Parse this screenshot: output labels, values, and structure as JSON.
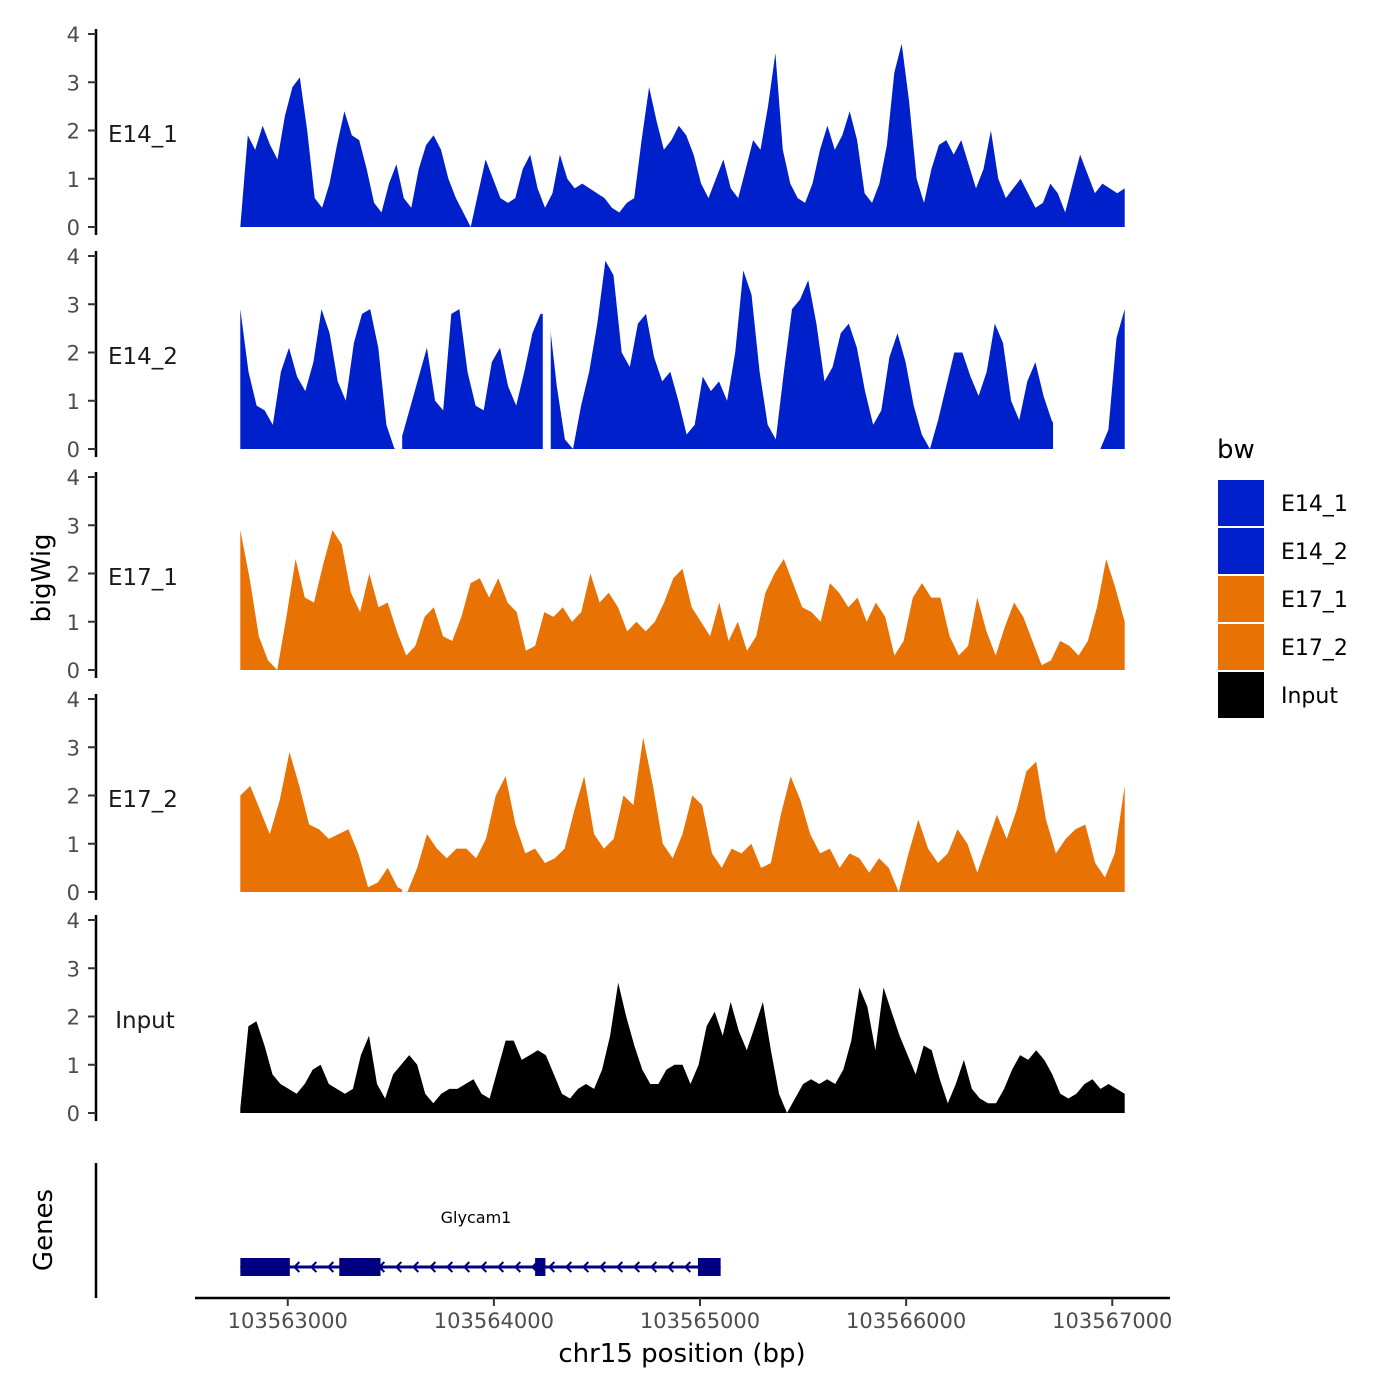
{
  "chart_data": {
    "type": "area",
    "ylabel": "bigWig",
    "xlabel": "chr15 position (bp)",
    "ylim": [
      0,
      4
    ],
    "y_ticks": [
      "0",
      "1",
      "2",
      "3",
      "4"
    ],
    "xlim": [
      103562550,
      103567280
    ],
    "x_ticks": [
      {
        "value": 103563000,
        "label": "103563000"
      },
      {
        "value": 103564000,
        "label": "103564000"
      },
      {
        "value": 103565000,
        "label": "103565000"
      },
      {
        "value": 103566000,
        "label": "103566000"
      },
      {
        "value": 103567000,
        "label": "103567000"
      }
    ],
    "x_start": 103562770,
    "x_end": 103567060,
    "series": [
      {
        "name": "E14_1",
        "color": "#0020CC",
        "values": [
          0.0,
          1.9,
          1.6,
          2.1,
          1.7,
          1.4,
          2.3,
          2.9,
          3.1,
          2.0,
          0.6,
          0.4,
          0.9,
          1.7,
          2.4,
          1.9,
          1.8,
          1.2,
          0.5,
          0.3,
          0.9,
          1.3,
          0.6,
          0.4,
          1.2,
          1.7,
          1.9,
          1.6,
          1.0,
          0.6,
          0.3,
          0.0,
          0.7,
          1.4,
          1.0,
          0.6,
          0.5,
          0.6,
          1.2,
          1.5,
          0.8,
          0.4,
          0.7,
          1.5,
          1.0,
          0.8,
          0.9,
          0.8,
          0.7,
          0.6,
          0.4,
          0.3,
          0.5,
          0.6,
          1.8,
          2.9,
          2.2,
          1.6,
          1.8,
          2.1,
          1.9,
          1.5,
          0.9,
          0.6,
          1.0,
          1.4,
          0.8,
          0.6,
          1.2,
          1.8,
          1.6,
          2.5,
          3.6,
          1.6,
          0.9,
          0.6,
          0.5,
          0.9,
          1.6,
          2.1,
          1.6,
          1.9,
          2.4,
          1.8,
          0.7,
          0.5,
          0.9,
          1.7,
          3.2,
          3.8,
          2.6,
          1.0,
          0.5,
          1.2,
          1.7,
          1.8,
          1.5,
          1.8,
          1.3,
          0.8,
          1.2,
          2.0,
          1.0,
          0.6,
          0.8,
          1.0,
          0.7,
          0.4,
          0.5,
          0.9,
          0.7,
          0.3,
          0.9,
          1.5,
          1.1,
          0.7,
          0.9,
          0.8,
          0.7,
          0.8
        ],
        "gaps": []
      },
      {
        "name": "E14_2",
        "color": "#0020CC",
        "values": [
          2.9,
          1.6,
          0.9,
          0.8,
          0.5,
          1.6,
          2.1,
          1.5,
          1.2,
          1.8,
          2.9,
          2.4,
          1.4,
          1.0,
          2.2,
          2.8,
          2.9,
          2.1,
          0.5,
          0.0,
          0.3,
          0.9,
          1.5,
          2.1,
          1.0,
          0.8,
          2.8,
          2.9,
          1.6,
          0.9,
          0.8,
          1.8,
          2.1,
          1.3,
          0.9,
          1.6,
          2.4,
          2.8,
          2.8,
          1.3,
          0.2,
          0.0,
          0.9,
          1.6,
          2.6,
          3.9,
          3.6,
          2.0,
          1.7,
          2.6,
          2.8,
          1.9,
          1.4,
          1.6,
          1.0,
          0.3,
          0.5,
          1.5,
          1.2,
          1.4,
          1.0,
          2.0,
          3.7,
          3.2,
          1.6,
          0.5,
          0.2,
          1.6,
          2.9,
          3.1,
          3.5,
          2.6,
          1.4,
          1.7,
          2.4,
          2.6,
          2.1,
          1.2,
          0.5,
          0.8,
          1.9,
          2.4,
          1.8,
          0.9,
          0.3,
          0.0,
          0.6,
          1.3,
          2.0,
          2.0,
          1.5,
          1.1,
          1.6,
          2.6,
          2.2,
          1.0,
          0.6,
          1.4,
          1.8,
          1.1,
          0.6,
          0.3,
          0.5,
          0.4,
          0.0,
          0.0,
          0.0,
          0.4,
          2.3,
          2.9
        ],
        "gaps": [
          [
            0.175,
            0.183
          ],
          [
            0.342,
            0.351
          ],
          [
            0.919,
            0.962
          ]
        ]
      },
      {
        "name": "E17_1",
        "color": "#E87204",
        "values": [
          2.9,
          1.9,
          0.7,
          0.2,
          0.0,
          1.1,
          2.3,
          1.5,
          1.4,
          2.2,
          2.9,
          2.6,
          1.6,
          1.2,
          2.0,
          1.3,
          1.4,
          0.8,
          0.3,
          0.5,
          1.1,
          1.3,
          0.7,
          0.6,
          1.1,
          1.8,
          1.9,
          1.5,
          1.9,
          1.4,
          1.2,
          0.4,
          0.5,
          1.2,
          1.1,
          1.3,
          1.0,
          1.2,
          2.0,
          1.4,
          1.6,
          1.3,
          0.8,
          1.0,
          0.8,
          1.0,
          1.4,
          1.9,
          2.1,
          1.3,
          1.0,
          0.7,
          1.4,
          0.6,
          1.0,
          0.4,
          0.7,
          1.6,
          2.0,
          2.3,
          1.8,
          1.3,
          1.2,
          1.0,
          1.8,
          1.6,
          1.3,
          1.5,
          1.0,
          1.4,
          1.1,
          0.3,
          0.6,
          1.5,
          1.8,
          1.5,
          1.5,
          0.7,
          0.3,
          0.5,
          1.5,
          0.8,
          0.3,
          0.9,
          1.4,
          1.1,
          0.6,
          0.1,
          0.2,
          0.6,
          0.5,
          0.3,
          0.6,
          1.3,
          2.3,
          1.7,
          1.0
        ],
        "gaps": []
      },
      {
        "name": "E17_2",
        "color": "#E87204",
        "values": [
          2.0,
          2.2,
          1.7,
          1.2,
          1.9,
          2.9,
          2.2,
          1.4,
          1.3,
          1.1,
          1.2,
          1.3,
          0.8,
          0.1,
          0.2,
          0.5,
          0.1,
          0.0,
          0.5,
          1.2,
          0.9,
          0.7,
          0.9,
          0.9,
          0.7,
          1.1,
          2.0,
          2.4,
          1.4,
          0.8,
          0.9,
          0.6,
          0.7,
          0.9,
          1.7,
          2.4,
          1.2,
          0.9,
          1.1,
          2.0,
          1.8,
          3.2,
          2.2,
          1.0,
          0.7,
          1.2,
          2.0,
          1.8,
          0.8,
          0.5,
          0.9,
          0.8,
          1.0,
          0.5,
          0.6,
          1.6,
          2.4,
          1.9,
          1.2,
          0.8,
          0.9,
          0.5,
          0.8,
          0.7,
          0.4,
          0.7,
          0.5,
          0.0,
          0.8,
          1.5,
          0.9,
          0.6,
          0.8,
          1.3,
          1.0,
          0.4,
          1.0,
          1.6,
          1.1,
          1.7,
          2.5,
          2.7,
          1.5,
          0.8,
          1.1,
          1.3,
          1.4,
          0.6,
          0.3,
          0.8,
          2.2
        ],
        "gaps": [
          [
            0.183,
            0.187
          ]
        ]
      },
      {
        "name": "Input",
        "color": "#000000",
        "values": [
          0.1,
          1.8,
          1.9,
          1.4,
          0.8,
          0.6,
          0.5,
          0.4,
          0.6,
          0.9,
          1.0,
          0.6,
          0.5,
          0.4,
          0.5,
          1.2,
          1.6,
          0.6,
          0.3,
          0.8,
          1.0,
          1.2,
          1.0,
          0.4,
          0.2,
          0.4,
          0.5,
          0.5,
          0.6,
          0.7,
          0.4,
          0.3,
          0.9,
          1.5,
          1.5,
          1.1,
          1.2,
          1.3,
          1.2,
          0.8,
          0.4,
          0.3,
          0.5,
          0.6,
          0.5,
          0.9,
          1.6,
          2.7,
          2.0,
          1.4,
          0.9,
          0.6,
          0.6,
          0.9,
          1.0,
          1.0,
          0.6,
          1.0,
          1.8,
          2.1,
          1.6,
          2.3,
          1.7,
          1.3,
          1.8,
          2.3,
          1.3,
          0.4,
          0.0,
          0.3,
          0.6,
          0.7,
          0.6,
          0.7,
          0.6,
          0.9,
          1.5,
          2.6,
          2.2,
          1.3,
          2.6,
          2.1,
          1.6,
          1.2,
          0.8,
          1.4,
          1.3,
          0.7,
          0.2,
          0.6,
          1.1,
          0.5,
          0.3,
          0.2,
          0.2,
          0.5,
          0.9,
          1.2,
          1.1,
          1.3,
          1.1,
          0.8,
          0.4,
          0.3,
          0.4,
          0.6,
          0.7,
          0.5,
          0.6,
          0.5,
          0.4
        ],
        "gaps": []
      }
    ],
    "genes_track": {
      "label": "Genes",
      "gene_name": "Glycam1",
      "strand": "-",
      "color": "#000080",
      "start": 103562770,
      "end": 103565100,
      "exons": [
        [
          103562770,
          103563010
        ],
        [
          103563250,
          103563450
        ],
        [
          103564200,
          103564250
        ],
        [
          103564990,
          103565100
        ]
      ]
    },
    "legend": {
      "title": "bw",
      "entries": [
        {
          "label": "E14_1",
          "color": "#0020CC"
        },
        {
          "label": "E14_2",
          "color": "#0020CC"
        },
        {
          "label": "E17_1",
          "color": "#E87204"
        },
        {
          "label": "E17_2",
          "color": "#E87204"
        },
        {
          "label": "Input",
          "color": "#000000"
        }
      ]
    }
  }
}
